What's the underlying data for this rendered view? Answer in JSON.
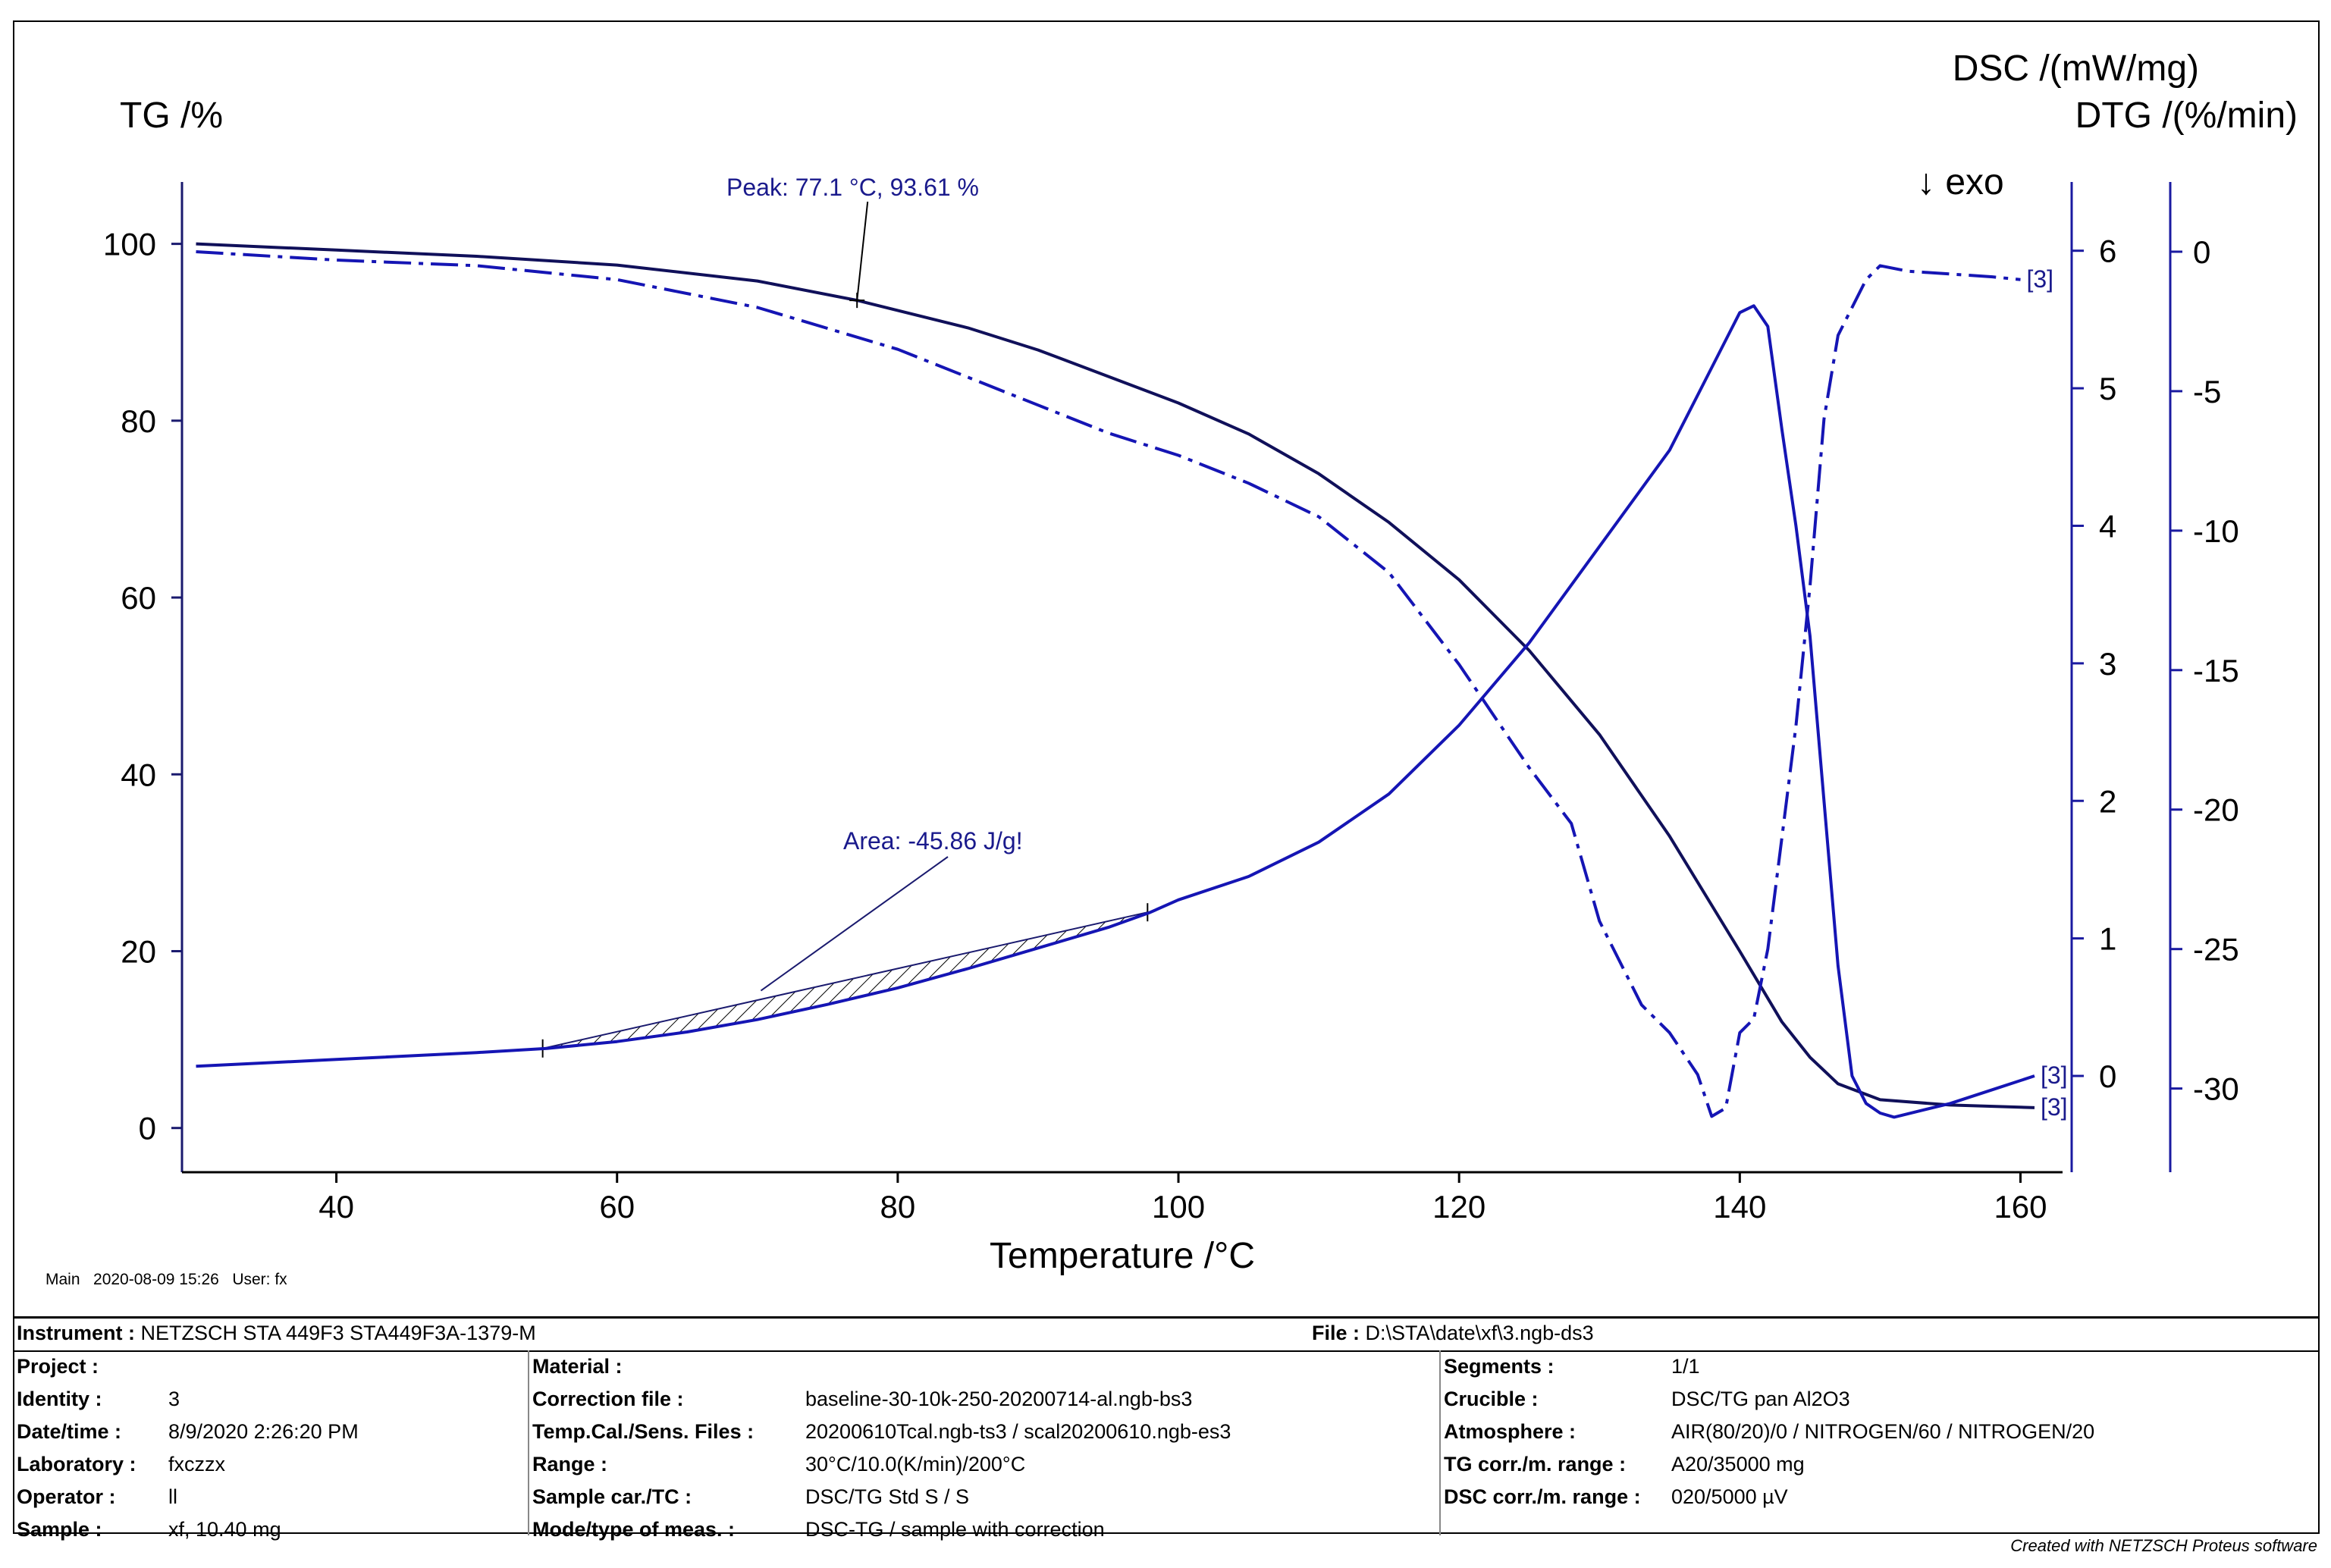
{
  "chart_data": {
    "type": "line",
    "xlabel": "Temperature /°C",
    "x_ticks": [
      40,
      60,
      80,
      100,
      120,
      140,
      160
    ],
    "xlim": [
      29,
      163
    ],
    "axes": {
      "tg": {
        "label": "TG /%",
        "lim": [
          -5,
          107
        ],
        "ticks": [
          0,
          20,
          40,
          60,
          80,
          100
        ]
      },
      "dsc": {
        "label": "DSC /(mW/mg)",
        "lim": [
          -0.7,
          6.5
        ],
        "ticks": [
          0,
          1,
          2,
          3,
          4,
          5,
          6
        ]
      },
      "dtg": {
        "label": "DTG /(%/min)",
        "lim": [
          -33.0,
          2.5
        ],
        "ticks": [
          0,
          -5,
          -10,
          -15,
          -20,
          -25,
          -30
        ]
      }
    },
    "exo_label": "↓ exo",
    "series": [
      {
        "name": "TG",
        "axis": "tg",
        "style": "solid",
        "end_label": "[3]",
        "points": [
          [
            30,
            100
          ],
          [
            40,
            99.3
          ],
          [
            50,
            98.6
          ],
          [
            60,
            97.6
          ],
          [
            70,
            95.8
          ],
          [
            77.1,
            93.61
          ],
          [
            85,
            90.5
          ],
          [
            90,
            88
          ],
          [
            95,
            85
          ],
          [
            100,
            82
          ],
          [
            105,
            78.5
          ],
          [
            110,
            74
          ],
          [
            115,
            68.5
          ],
          [
            120,
            62
          ],
          [
            125,
            54
          ],
          [
            130,
            44.5
          ],
          [
            135,
            33
          ],
          [
            140,
            20
          ],
          [
            143,
            12
          ],
          [
            145,
            8
          ],
          [
            147,
            5
          ],
          [
            150,
            3.2
          ],
          [
            155,
            2.6
          ],
          [
            161,
            2.3
          ]
        ]
      },
      {
        "name": "DSC",
        "axis": "dsc",
        "style": "solid",
        "end_label": "[3]",
        "points": [
          [
            30,
            0.07
          ],
          [
            40,
            0.12
          ],
          [
            50,
            0.17
          ],
          [
            55,
            0.2
          ],
          [
            60,
            0.25
          ],
          [
            65,
            0.32
          ],
          [
            70,
            0.41
          ],
          [
            75,
            0.52
          ],
          [
            80,
            0.64
          ],
          [
            85,
            0.78
          ],
          [
            90,
            0.93
          ],
          [
            95,
            1.08
          ],
          [
            98,
            1.19
          ],
          [
            100,
            1.28
          ],
          [
            105,
            1.45
          ],
          [
            110,
            1.7
          ],
          [
            115,
            2.05
          ],
          [
            120,
            2.55
          ],
          [
            125,
            3.15
          ],
          [
            130,
            3.85
          ],
          [
            135,
            4.55
          ],
          [
            138,
            5.15
          ],
          [
            140,
            5.55
          ],
          [
            141,
            5.6
          ],
          [
            142,
            5.45
          ],
          [
            143,
            4.7
          ],
          [
            144,
            4.0
          ],
          [
            145,
            3.2
          ],
          [
            146,
            2.0
          ],
          [
            147,
            0.8
          ],
          [
            148,
            0.0
          ],
          [
            149,
            -0.2
          ],
          [
            150,
            -0.27
          ],
          [
            151,
            -0.3
          ],
          [
            155,
            -0.2
          ],
          [
            158,
            -0.1
          ],
          [
            161,
            0.0
          ]
        ]
      },
      {
        "name": "DTG",
        "axis": "dtg",
        "style": "dash-dot",
        "end_label": "[3]",
        "points": [
          [
            30,
            0
          ],
          [
            40,
            -0.3
          ],
          [
            50,
            -0.5
          ],
          [
            60,
            -1
          ],
          [
            70,
            -2
          ],
          [
            80,
            -3.5
          ],
          [
            85,
            -4.5
          ],
          [
            90,
            -5.5
          ],
          [
            95,
            -6.5
          ],
          [
            100,
            -7.3
          ],
          [
            105,
            -8.3
          ],
          [
            110,
            -9.5
          ],
          [
            115,
            -11.5
          ],
          [
            120,
            -14.8
          ],
          [
            125,
            -18.5
          ],
          [
            128,
            -20.5
          ],
          [
            130,
            -24
          ],
          [
            132,
            -26
          ],
          [
            133,
            -27
          ],
          [
            135,
            -28
          ],
          [
            137,
            -29.5
          ],
          [
            138,
            -31
          ],
          [
            139,
            -30.7
          ],
          [
            140,
            -28
          ],
          [
            141,
            -27.5
          ],
          [
            142,
            -25
          ],
          [
            143,
            -21
          ],
          [
            144,
            -17
          ],
          [
            145,
            -12
          ],
          [
            146,
            -6
          ],
          [
            147,
            -3
          ],
          [
            149,
            -1
          ],
          [
            150,
            -0.5
          ],
          [
            152,
            -0.7
          ],
          [
            155,
            -0.8
          ],
          [
            158,
            -0.9
          ],
          [
            160,
            -1
          ]
        ]
      }
    ],
    "peak_annotation": {
      "text": "Peak: 77.1 °C, 93.61 %",
      "x": 77.1,
      "y": 93.61,
      "axis": "tg"
    },
    "area_annotation": {
      "text": "Area: -45.86 J/g!",
      "x_start": 54.7,
      "x_end": 97.8,
      "axis": "dsc",
      "y_start": 0.2,
      "y_end": 1.19
    }
  },
  "header": {
    "main_line": "Main   2020-08-09 15:26   User: fx"
  },
  "info": {
    "instrument_label": "Instrument :",
    "instrument_value": "NETZSCH STA 449F3 STA449F3A-1379-M",
    "file_label": "File :",
    "file_value": "D:\\STA\\date\\xf\\3.ngb-ds3",
    "col1": [
      {
        "label": "Project :",
        "value": ""
      },
      {
        "label": "Identity :",
        "value": "3"
      },
      {
        "label": "Date/time :",
        "value": "8/9/2020 2:26:20 PM"
      },
      {
        "label": "Laboratory :",
        "value": "fxczzx"
      },
      {
        "label": "Operator :",
        "value": "ll"
      },
      {
        "label": "Sample :",
        "value": "xf, 10.40 mg"
      }
    ],
    "col2": [
      {
        "label": "Material :",
        "value": ""
      },
      {
        "label": "Correction file :",
        "value": "baseline-30-10k-250-20200714-al.ngb-bs3"
      },
      {
        "label": "Temp.Cal./Sens. Files :",
        "value": "20200610Tcal.ngb-ts3 / scal20200610.ngb-es3"
      },
      {
        "label": "Range :",
        "value": "30°C/10.0(K/min)/200°C"
      },
      {
        "label": "Sample car./TC :",
        "value": "DSC/TG Std S / S"
      },
      {
        "label": "Mode/type of meas. :",
        "value": "DSC-TG / sample with correction"
      }
    ],
    "col3": [
      {
        "label": "Segments :",
        "value": "1/1"
      },
      {
        "label": "Crucible :",
        "value": "DSC/TG pan Al2O3"
      },
      {
        "label": "Atmosphere :",
        "value": "AIR(80/20)/0 / NITROGEN/60 / NITROGEN/20"
      },
      {
        "label": "TG corr./m. range :",
        "value": "A20/35000 mg"
      },
      {
        "label": "DSC corr./m. range :",
        "value": "020/5000 µV"
      }
    ]
  },
  "footer": "Created with NETZSCH Proteus software",
  "colors": {
    "curve": "#1515b4",
    "axis_blue": "#1a1aa0",
    "frame": "#000000"
  }
}
